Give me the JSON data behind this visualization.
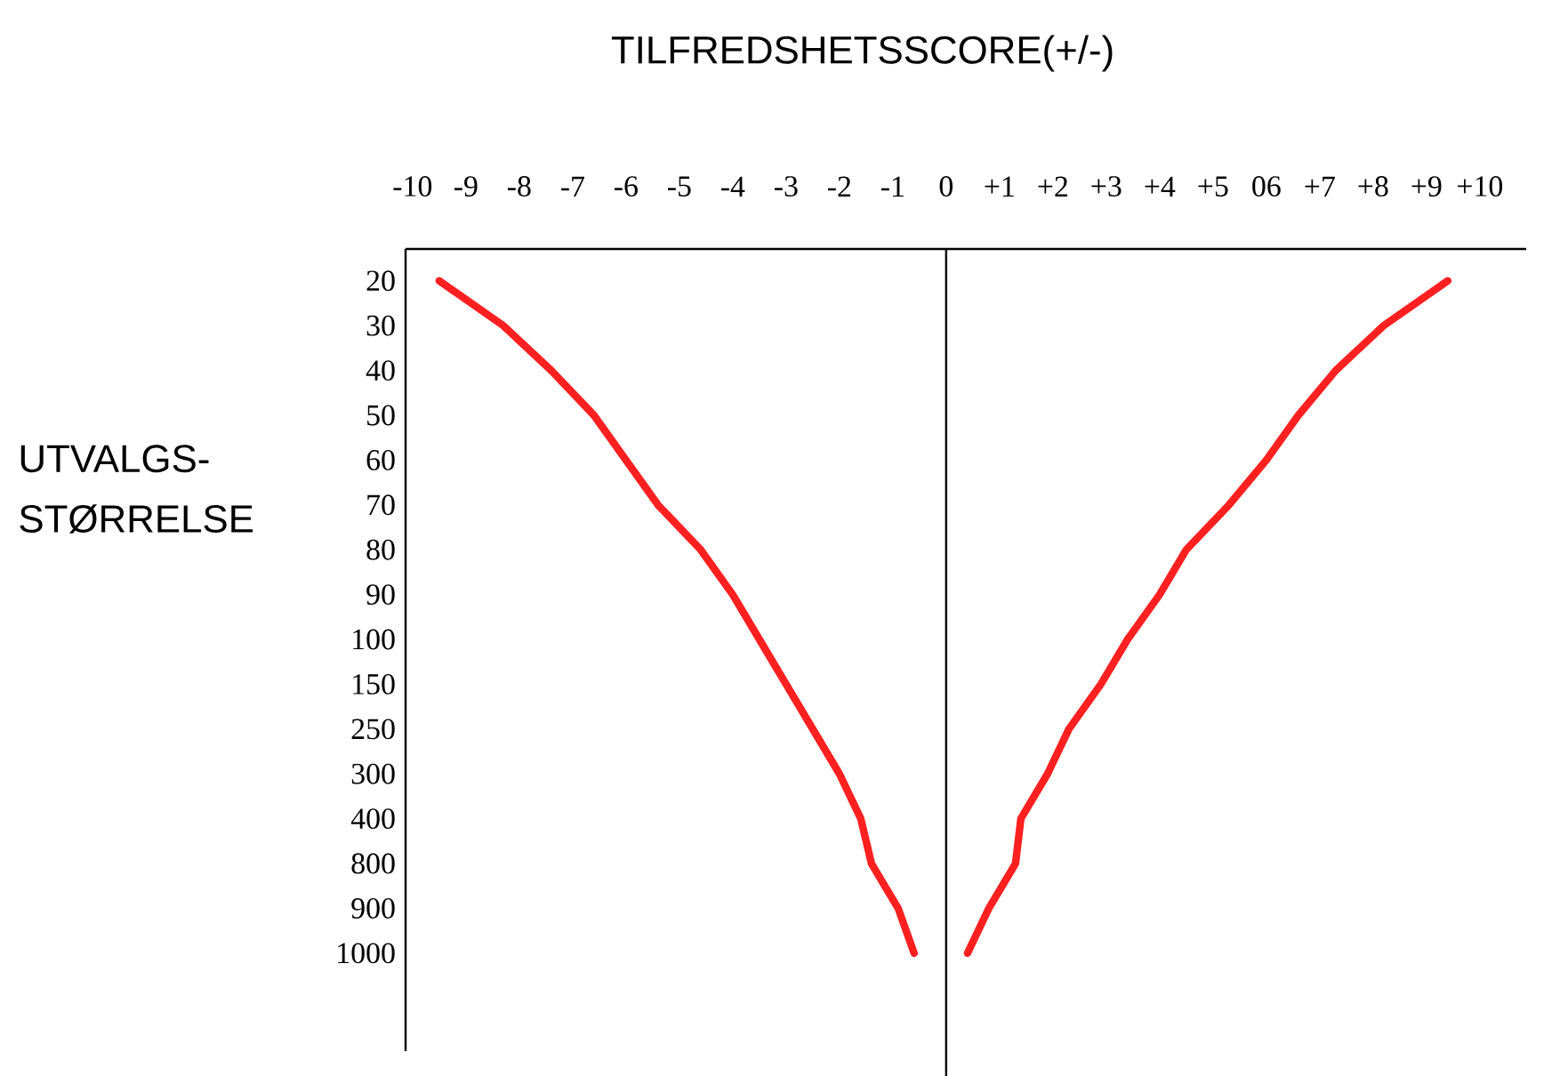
{
  "chart_data": {
    "type": "line",
    "orientation": "horizontal",
    "xlabel": "TILFREDSHETSSCORE(+/-)",
    "ylabel": "UTVALGS- STØRRELSE",
    "categories": [
      "20",
      "30",
      "40",
      "50",
      "60",
      "70",
      "80",
      "90",
      "100",
      "150",
      "250",
      "300",
      "400",
      "800",
      "900",
      "1000"
    ],
    "xlim": [
      -10.13,
      10.87
    ],
    "xticks": [
      -10,
      -9,
      -8,
      -7,
      -6,
      -5,
      -4,
      -3,
      -2,
      -1,
      0,
      {
        "value": 1,
        "label": "+1"
      },
      {
        "value": 2,
        "label": "+2"
      },
      {
        "value": 3,
        "label": "+3"
      },
      {
        "value": 4,
        "label": "+4"
      },
      {
        "value": 5,
        "label": "+5"
      },
      {
        "value": 6,
        "label": "06"
      },
      {
        "value": 7,
        "label": "+7"
      },
      {
        "value": 8,
        "label": "+8"
      },
      {
        "value": 9,
        "label": "+9"
      },
      {
        "value": 10,
        "label": "+10"
      }
    ],
    "ref_lines": [
      {
        "axis": "x",
        "value": 0,
        "color": "#000000"
      }
    ],
    "series": [
      {
        "color": "#ff2020",
        "values": [
          -9.5,
          -8.3,
          -7.4,
          -6.6,
          -6.0,
          -5.4,
          -4.6,
          -4.0,
          -3.5,
          -3.0,
          -2.5,
          -2.0,
          -1.6,
          -1.4,
          -0.9,
          -0.6
        ]
      },
      {
        "color": "#ff2020",
        "values": [
          9.4,
          8.2,
          7.3,
          6.6,
          6.0,
          5.3,
          4.5,
          4.0,
          3.4,
          2.9,
          2.3,
          1.9,
          1.4,
          1.3,
          0.8,
          0.4
        ]
      }
    ]
  }
}
